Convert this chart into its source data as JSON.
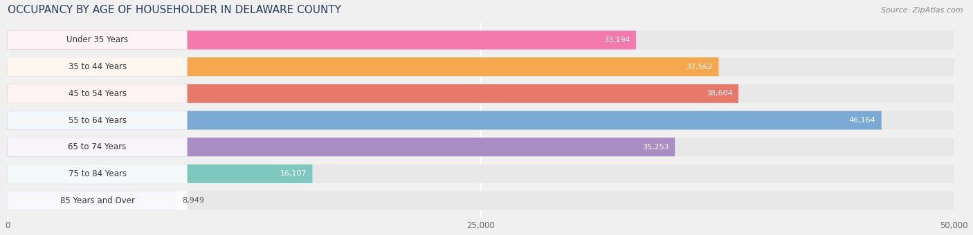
{
  "title": "OCCUPANCY BY AGE OF HOUSEHOLDER IN DELAWARE COUNTY",
  "source": "Source: ZipAtlas.com",
  "categories": [
    "Under 35 Years",
    "35 to 44 Years",
    "45 to 54 Years",
    "55 to 64 Years",
    "65 to 74 Years",
    "75 to 84 Years",
    "85 Years and Over"
  ],
  "values": [
    33194,
    37562,
    38604,
    46164,
    35253,
    16107,
    8949
  ],
  "bar_colors": [
    "#F47AAE",
    "#F5A84E",
    "#E8786A",
    "#7aaad4",
    "#A98DC5",
    "#7EC8C0",
    "#BBBBEE"
  ],
  "bar_bg_color": "#e8e8e8",
  "label_bg_color": "#ffffff",
  "xlim": [
    0,
    50000
  ],
  "xticks": [
    0,
    25000,
    50000
  ],
  "xtick_labels": [
    "0",
    "25,000",
    "50,000"
  ],
  "title_fontsize": 11,
  "source_fontsize": 8,
  "label_fontsize": 8.5,
  "value_fontsize": 8,
  "bar_height": 0.7,
  "background_color": "#f0f0f0",
  "value_inside_threshold": 15000
}
